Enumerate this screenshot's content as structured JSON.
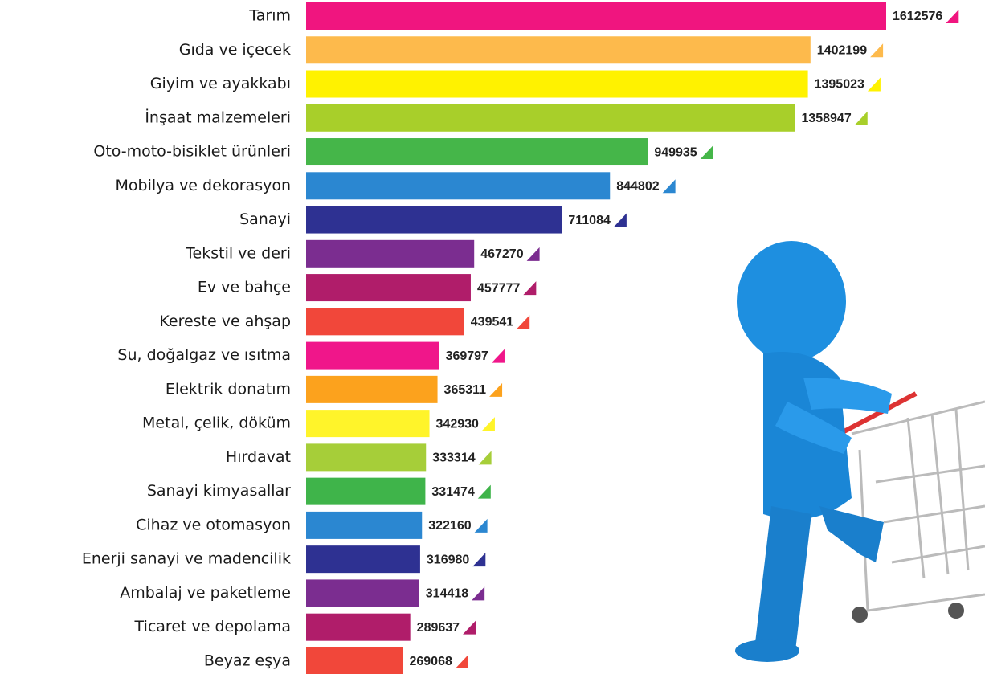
{
  "chart_data": {
    "type": "bar",
    "orientation": "horizontal",
    "categories": [
      "Tarım",
      "Gıda ve içecek",
      "Giyim ve ayakkabı",
      "İnşaat malzemeleri",
      "Oto-moto-bisiklet ürünleri",
      "Mobilya ve dekorasyon",
      "Sanayi",
      "Tekstil ve deri",
      "Ev ve bahçe",
      "Kereste ve ahşap",
      "Su, doğalgaz ve ısıtma",
      "Elektrik donatım",
      "Metal, çelik, döküm",
      "Hırdavat",
      "Sanayi kimyasallar",
      "Cihaz ve otomasyon",
      "Enerji sanayi ve madencilik",
      "Ambalaj ve paketleme",
      "Ticaret ve depolama",
      "Beyaz eşya"
    ],
    "values": [
      1612576,
      1402199,
      1395023,
      1358947,
      949935,
      844802,
      711084,
      467270,
      457777,
      439541,
      369797,
      365311,
      342930,
      333314,
      331474,
      322160,
      316980,
      314418,
      289637,
      269068
    ],
    "colors": [
      "#f0157f",
      "#fdba4c",
      "#fff200",
      "#a8cf2a",
      "#45b649",
      "#2b87d1",
      "#2e3192",
      "#7b2d90",
      "#b01d6a",
      "#f1473a",
      "#f0168a",
      "#fca21d",
      "#fff42a",
      "#a6ce39",
      "#3fb44a",
      "#2b87d1",
      "#2e3192",
      "#7b2d90",
      "#b01d6a",
      "#f1473a"
    ]
  }
}
